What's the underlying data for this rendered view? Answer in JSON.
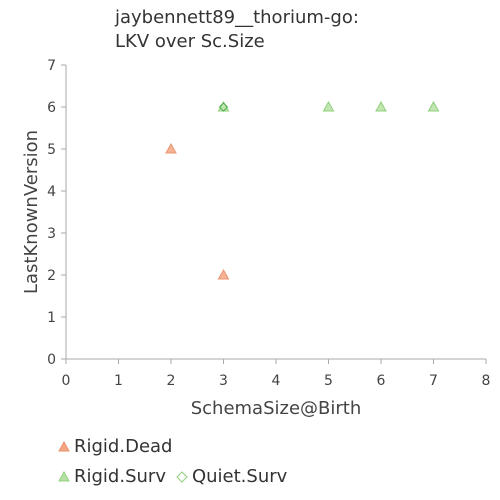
{
  "chart_data": {
    "type": "scatter",
    "title_line1": "jaybennett89__thorium-go:",
    "title_line2": "LKV over Sc.Size",
    "xlabel": "SchemaSize@Birth",
    "ylabel": "LastKnownVersion",
    "xlim": [
      0,
      8
    ],
    "ylim": [
      0,
      7
    ],
    "x_ticks": [
      "0",
      "1",
      "2",
      "3",
      "4",
      "5",
      "6",
      "7",
      "8"
    ],
    "y_ticks": [
      "0",
      "1",
      "2",
      "3",
      "4",
      "5",
      "6",
      "7"
    ],
    "grid": false,
    "legend_position": "bottom-left",
    "series": [
      {
        "name": "Rigid.Dead",
        "marker": "triangle",
        "color": "#f4a582",
        "stroke": "#e8956f",
        "points": [
          [
            2,
            5
          ],
          [
            3,
            2
          ]
        ]
      },
      {
        "name": "Rigid.Surv",
        "marker": "triangle",
        "color": "#b7e0a5",
        "stroke": "#8fcf7a",
        "points": [
          [
            3,
            6
          ],
          [
            5,
            6
          ],
          [
            6,
            6
          ],
          [
            7,
            6
          ]
        ]
      },
      {
        "name": "Quiet.Surv",
        "marker": "diamond",
        "color": "#b7e0a5",
        "stroke": "#4caf50",
        "points": [
          [
            3,
            6
          ]
        ]
      }
    ]
  }
}
